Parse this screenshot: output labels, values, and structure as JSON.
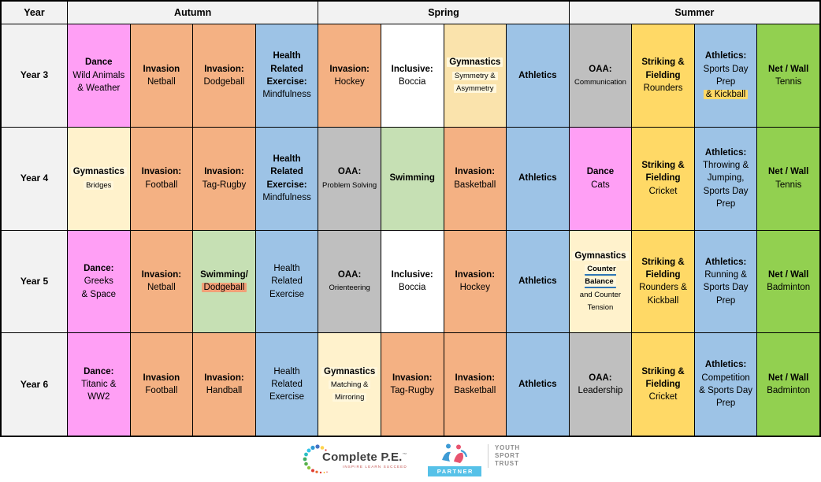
{
  "header": {
    "year": "Year",
    "terms": [
      "Autumn",
      "Spring",
      "Summer"
    ]
  },
  "palette": {
    "pink": "#FF9FF5",
    "orange": "#F4B183",
    "blue": "#9DC3E6",
    "cream": "#FFF2CC",
    "creamDeep": "#FAE3AC",
    "gray": "#BFBFBF",
    "yellow": "#FFD966",
    "green": "#92D050",
    "mint": "#C6E0B4",
    "white": "#FFFFFF",
    "headerBg": "#F2F2F2",
    "hlSoft": "#FFF7DC",
    "hlYellow": "#FFD966",
    "hlOrange": "#F1A077",
    "underline": "#2E75B6",
    "partnerBlue": "#56C1E8"
  },
  "rows": [
    {
      "year": "Year 3",
      "cells": [
        {
          "bg": "pink",
          "lines": [
            {
              "t": "Dance",
              "b": 1
            },
            {
              "t": "Wild Animals"
            },
            {
              "t": "& Weather"
            }
          ]
        },
        {
          "bg": "orange",
          "lines": [
            {
              "t": "Invasion",
              "b": 1
            },
            {
              "t": "Netball"
            }
          ]
        },
        {
          "bg": "orange",
          "lines": [
            {
              "t": "Invasion:",
              "b": 1
            },
            {
              "t": "Dodgeball"
            }
          ]
        },
        {
          "bg": "blue",
          "lines": [
            {
              "t": "Health",
              "b": 1
            },
            {
              "t": "Related",
              "b": 1
            },
            {
              "t": "Exercise:",
              "b": 1
            },
            {
              "t": "Mindfulness"
            }
          ]
        },
        {
          "bg": "orange",
          "lines": [
            {
              "t": "Invasion:",
              "b": 1
            },
            {
              "t": "Hockey"
            }
          ]
        },
        {
          "bg": "white",
          "lines": [
            {
              "t": "Inclusive:",
              "b": 1
            },
            {
              "t": "Boccia"
            }
          ]
        },
        {
          "bg": "creamDeep",
          "lines": [
            {
              "t": "Gymnastics",
              "b": 1,
              "hl": "hlSoft"
            },
            {
              "t": "Symmetry &",
              "s": 1,
              "hl": "hlSoft"
            },
            {
              "t": "Asymmetry",
              "s": 1,
              "hl": "hlSoft"
            }
          ]
        },
        {
          "bg": "blue",
          "lines": [
            {
              "t": "Athletics",
              "b": 1
            }
          ]
        },
        {
          "bg": "gray",
          "lines": [
            {
              "t": "OAA:",
              "b": 1
            },
            {
              "t": "Communication",
              "s": 1
            }
          ]
        },
        {
          "bg": "yellow",
          "lines": [
            {
              "t": "Striking &",
              "b": 1
            },
            {
              "t": "Fielding",
              "b": 1
            },
            {
              "t": "Rounders"
            }
          ]
        },
        {
          "bg": "blue",
          "lines": [
            {
              "t": "Athletics:",
              "b": 1
            },
            {
              "t": "Sports Day"
            },
            {
              "t": "Prep"
            },
            {
              "t": "& Kickball",
              "hl": "hlYellow"
            }
          ]
        },
        {
          "bg": "green",
          "lines": [
            {
              "t": "Net / Wall",
              "b": 1
            },
            {
              "t": "Tennis"
            }
          ]
        }
      ]
    },
    {
      "year": "Year 4",
      "cells": [
        {
          "bg": "cream",
          "lines": [
            {
              "t": "Gymnastics",
              "b": 1,
              "hl": "hlSoft"
            },
            {
              "t": "Bridges",
              "s": 1,
              "hl": "hlSoft"
            }
          ]
        },
        {
          "bg": "orange",
          "lines": [
            {
              "t": "Invasion:",
              "b": 1
            },
            {
              "t": "Football"
            }
          ]
        },
        {
          "bg": "orange",
          "lines": [
            {
              "t": "Invasion:",
              "b": 1
            },
            {
              "t": "Tag-Rugby"
            }
          ]
        },
        {
          "bg": "blue",
          "lines": [
            {
              "t": "Health",
              "b": 1
            },
            {
              "t": "Related",
              "b": 1
            },
            {
              "t": "Exercise:",
              "b": 1
            },
            {
              "t": "Mindfulness"
            }
          ]
        },
        {
          "bg": "gray",
          "lines": [
            {
              "t": "OAA:",
              "b": 1
            },
            {
              "t": "Problem Solving",
              "s": 1
            }
          ]
        },
        {
          "bg": "mint",
          "lines": [
            {
              "t": "Swimming",
              "b": 1
            }
          ]
        },
        {
          "bg": "orange",
          "lines": [
            {
              "t": "Invasion:",
              "b": 1
            },
            {
              "t": "Basketball"
            }
          ]
        },
        {
          "bg": "blue",
          "lines": [
            {
              "t": "Athletics",
              "b": 1
            }
          ]
        },
        {
          "bg": "pink",
          "lines": [
            {
              "t": "Dance",
              "b": 1
            },
            {
              "t": "Cats"
            }
          ]
        },
        {
          "bg": "yellow",
          "lines": [
            {
              "t": "Striking &",
              "b": 1
            },
            {
              "t": "Fielding",
              "b": 1
            },
            {
              "t": "Cricket"
            }
          ]
        },
        {
          "bg": "blue",
          "lines": [
            {
              "t": "Athletics:",
              "b": 1
            },
            {
              "t": "Throwing &"
            },
            {
              "t": "Jumping,"
            },
            {
              "t": "Sports Day"
            },
            {
              "t": "Prep"
            }
          ]
        },
        {
          "bg": "green",
          "lines": [
            {
              "t": "Net / Wall",
              "b": 1
            },
            {
              "t": "Tennis"
            }
          ]
        }
      ]
    },
    {
      "year": "Year 5",
      "cells": [
        {
          "bg": "pink",
          "lines": [
            {
              "t": "Dance:",
              "b": 1
            },
            {
              "t": "Greeks"
            },
            {
              "t": "& Space"
            }
          ]
        },
        {
          "bg": "orange",
          "lines": [
            {
              "t": "Invasion:",
              "b": 1
            },
            {
              "t": "Netball"
            }
          ]
        },
        {
          "bg": "mint",
          "lines": [
            {
              "t": "Swimming/",
              "b": 1
            },
            {
              "t": "Dodgeball",
              "hl": "hlOrange"
            }
          ]
        },
        {
          "bg": "blue",
          "lines": [
            {
              "t": "Health"
            },
            {
              "t": "Related"
            },
            {
              "t": "Exercise"
            }
          ]
        },
        {
          "bg": "gray",
          "lines": [
            {
              "t": "OAA:",
              "b": 1
            },
            {
              "t": "Orienteering",
              "s": 1
            }
          ]
        },
        {
          "bg": "white",
          "lines": [
            {
              "t": "Inclusive:",
              "b": 1
            },
            {
              "t": "Boccia"
            }
          ]
        },
        {
          "bg": "orange",
          "lines": [
            {
              "t": "Invasion:",
              "b": 1
            },
            {
              "t": "Hockey"
            }
          ]
        },
        {
          "bg": "blue",
          "lines": [
            {
              "t": "Athletics",
              "b": 1
            }
          ]
        },
        {
          "bg": "cream",
          "lines": [
            {
              "t": "Gymnastics",
              "b": 1,
              "hl": "hlSoft"
            },
            {
              "t": "Counter Balance",
              "s": 1,
              "b": 1,
              "u": 1,
              "hl": "hlSoft"
            },
            {
              "t": "and Counter",
              "s": 1
            },
            {
              "t": "Tension",
              "s": 1
            }
          ]
        },
        {
          "bg": "yellow",
          "lines": [
            {
              "t": "Striking &",
              "b": 1
            },
            {
              "t": "Fielding",
              "b": 1
            },
            {
              "t": "Rounders &"
            },
            {
              "t": "Kickball"
            }
          ]
        },
        {
          "bg": "blue",
          "lines": [
            {
              "t": "Athletics:",
              "b": 1
            },
            {
              "t": "Running &"
            },
            {
              "t": "Sports Day"
            },
            {
              "t": "Prep"
            }
          ]
        },
        {
          "bg": "green",
          "lines": [
            {
              "t": "Net / Wall",
              "b": 1
            },
            {
              "t": "Badminton"
            }
          ]
        }
      ]
    },
    {
      "year": "Year 6",
      "cells": [
        {
          "bg": "pink",
          "lines": [
            {
              "t": "Dance:",
              "b": 1
            },
            {
              "t": "Titanic &"
            },
            {
              "t": "WW2"
            }
          ]
        },
        {
          "bg": "orange",
          "lines": [
            {
              "t": "Invasion",
              "b": 1
            },
            {
              "t": "Football"
            }
          ]
        },
        {
          "bg": "orange",
          "lines": [
            {
              "t": "Invasion:",
              "b": 1
            },
            {
              "t": "Handball"
            }
          ]
        },
        {
          "bg": "blue",
          "lines": [
            {
              "t": "Health"
            },
            {
              "t": "Related"
            },
            {
              "t": "Exercise"
            }
          ]
        },
        {
          "bg": "cream",
          "lines": [
            {
              "t": "Gymnastics",
              "b": 1,
              "hl": "hlSoft"
            },
            {
              "t": "Matching &",
              "s": 1,
              "hl": "hlSoft"
            },
            {
              "t": "Mirroring",
              "s": 1,
              "hl": "hlSoft"
            }
          ]
        },
        {
          "bg": "orange",
          "lines": [
            {
              "t": "Invasion:",
              "b": 1
            },
            {
              "t": "Tag-Rugby"
            }
          ]
        },
        {
          "bg": "orange",
          "lines": [
            {
              "t": "Invasion:",
              "b": 1
            },
            {
              "t": "Basketball"
            }
          ]
        },
        {
          "bg": "blue",
          "lines": [
            {
              "t": "Athletics",
              "b": 1
            }
          ]
        },
        {
          "bg": "gray",
          "lines": [
            {
              "t": "OAA:",
              "b": 1
            },
            {
              "t": "Leadership"
            }
          ]
        },
        {
          "bg": "yellow",
          "lines": [
            {
              "t": "Striking &",
              "b": 1
            },
            {
              "t": "Fielding",
              "b": 1
            },
            {
              "t": "Cricket"
            }
          ]
        },
        {
          "bg": "blue",
          "lines": [
            {
              "t": "Athletics:",
              "b": 1
            },
            {
              "t": "Competition"
            },
            {
              "t": "& Sports Day"
            },
            {
              "t": "Prep"
            }
          ]
        },
        {
          "bg": "green",
          "lines": [
            {
              "t": "Net / Wall",
              "b": 1
            },
            {
              "t": "Badminton"
            }
          ]
        }
      ]
    },
    {
      "year": null
    }
  ],
  "footer": {
    "complete_pe": {
      "name": "Complete P.E.",
      "tm": "™",
      "tagline": "INSPIRE LEARN SUCCEED"
    },
    "yst": {
      "line1": "YOUTH",
      "line2": "SPORT",
      "line3": "TRUST",
      "badge": "PARTNER"
    }
  }
}
